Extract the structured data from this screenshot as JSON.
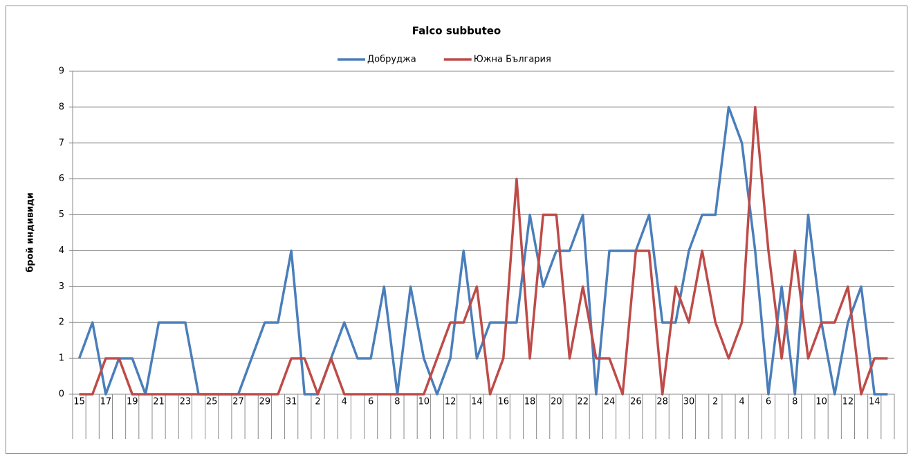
{
  "chart_data": {
    "type": "line",
    "title": "Falco subbuteo",
    "y_label": "брой индивиди",
    "categories": [
      "15",
      null,
      "17",
      null,
      "19",
      null,
      "21",
      null,
      "23",
      null,
      "25",
      null,
      "27",
      null,
      "29",
      null,
      "31",
      null,
      "2",
      null,
      "4",
      null,
      "6",
      null,
      "8",
      null,
      "10",
      null,
      "12",
      null,
      "14",
      null,
      "16",
      null,
      "18",
      null,
      "20",
      null,
      "22",
      null,
      "24",
      null,
      "26",
      null,
      "28",
      null,
      "30",
      null,
      "2",
      null,
      "4",
      null,
      "6",
      null,
      "8",
      null,
      "10",
      null,
      "12",
      null,
      "14",
      null
    ],
    "series": [
      {
        "name": "Добруджа",
        "color": "#4a7ebb",
        "values": [
          1,
          2,
          0,
          1,
          1,
          0,
          2,
          2,
          2,
          0,
          0,
          0,
          0,
          1,
          2,
          2,
          4,
          0,
          0,
          1,
          2,
          1,
          1,
          3,
          0,
          3,
          1,
          0,
          1,
          4,
          1,
          2,
          2,
          2,
          5,
          3,
          4,
          4,
          5,
          0,
          4,
          4,
          4,
          5,
          2,
          2,
          4,
          5,
          5,
          8,
          7,
          4,
          0,
          3,
          0,
          5,
          2,
          0,
          2,
          3,
          0,
          0
        ]
      },
      {
        "name": "Южна България",
        "color": "#be4b48",
        "values": [
          0,
          0,
          1,
          1,
          0,
          0,
          0,
          0,
          0,
          0,
          0,
          0,
          0,
          0,
          0,
          0,
          1,
          1,
          0,
          1,
          0,
          0,
          0,
          0,
          0,
          0,
          0,
          1,
          2,
          2,
          3,
          0,
          1,
          6,
          1,
          5,
          5,
          1,
          3,
          1,
          1,
          0,
          4,
          4,
          0,
          3,
          2,
          4,
          2,
          1,
          2,
          8,
          4,
          1,
          4,
          1,
          2,
          2,
          3,
          0,
          1,
          1
        ]
      }
    ],
    "ylim": [
      0,
      9
    ],
    "yticks": [
      0,
      1,
      2,
      3,
      4,
      5,
      6,
      7,
      8,
      9
    ],
    "grid": true,
    "legend": "top"
  }
}
